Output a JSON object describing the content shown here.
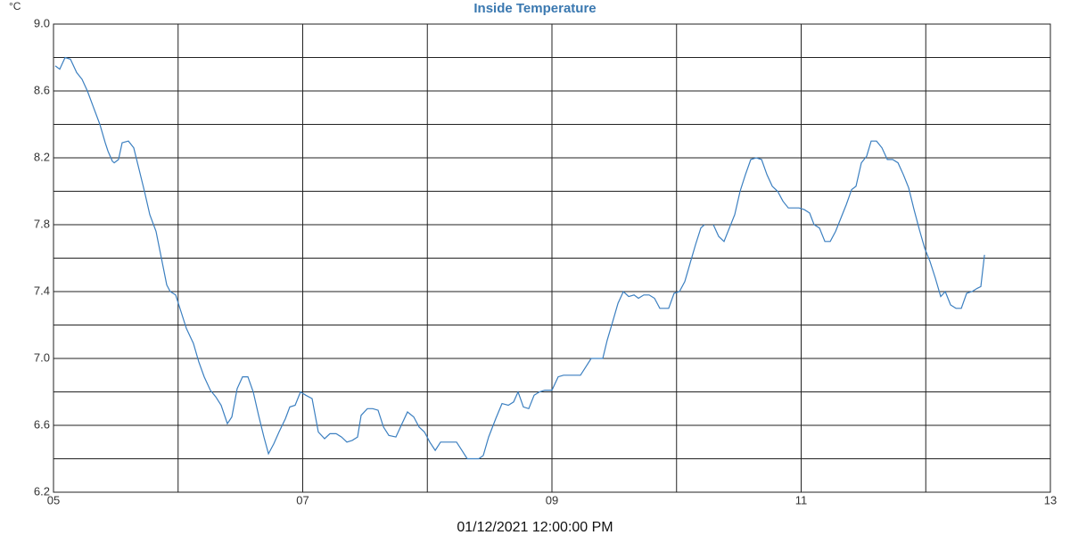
{
  "chart_data": {
    "type": "line",
    "title": "Inside Temperature",
    "y_unit": "°C",
    "xlabel": "01/12/2021 12:00:00 PM",
    "xlim": [
      5,
      13
    ],
    "ylim": [
      6.2,
      9.0
    ],
    "xticks": [
      {
        "value": 5,
        "label": "05"
      },
      {
        "value": 7,
        "label": "07"
      },
      {
        "value": 9,
        "label": "09"
      },
      {
        "value": 11,
        "label": "11"
      },
      {
        "value": 13,
        "label": "13"
      }
    ],
    "x_minor_ticks": [
      6,
      8,
      10,
      12
    ],
    "yticks": [
      {
        "value": 6.2,
        "label": "6.2"
      },
      6.6,
      {
        "value": 7.0,
        "label": "7.0"
      },
      7.4,
      7.8,
      8.2,
      8.6,
      {
        "value": 9.0,
        "label": "9.0"
      }
    ],
    "y_minor_ticks": [
      6.4,
      6.8,
      7.2,
      7.6,
      8.0,
      8.4,
      8.8
    ],
    "grid": true,
    "series": [
      {
        "name": "Inside Temperature",
        "color": "#3b7fc0",
        "x": [
          5.014,
          5.05,
          5.093,
          5.136,
          5.186,
          5.229,
          5.272,
          5.322,
          5.372,
          5.415,
          5.437,
          5.472,
          5.487,
          5.522,
          5.551,
          5.601,
          5.644,
          5.687,
          5.73,
          5.773,
          5.823,
          5.866,
          5.909,
          5.937,
          5.98,
          6.023,
          6.066,
          6.123,
          6.166,
          6.209,
          6.259,
          6.302,
          6.345,
          6.395,
          6.431,
          6.474,
          6.517,
          6.56,
          6.603,
          6.646,
          6.689,
          6.725,
          6.768,
          6.81,
          6.861,
          6.896,
          6.939,
          6.982,
          7.025,
          7.075,
          7.125,
          7.175,
          7.218,
          7.268,
          7.311,
          7.354,
          7.397,
          7.44,
          7.469,
          7.519,
          7.562,
          7.605,
          7.648,
          7.691,
          7.748,
          7.791,
          7.841,
          7.891,
          7.934,
          7.977,
          8.02,
          8.063,
          8.106,
          8.149,
          8.192,
          8.234,
          8.277,
          8.32,
          8.37,
          8.413,
          8.449,
          8.492,
          8.549,
          8.599,
          8.65,
          8.692,
          8.728,
          8.771,
          8.814,
          8.857,
          8.9,
          8.943,
          9.0,
          9.05,
          9.093,
          9.143,
          9.186,
          9.229,
          9.272,
          9.315,
          9.365,
          9.408,
          9.444,
          9.487,
          9.53,
          9.573,
          9.616,
          9.659,
          9.694,
          9.737,
          9.78,
          9.823,
          9.866,
          9.909,
          9.937,
          9.98,
          10.023,
          10.066,
          10.109,
          10.152,
          10.195,
          10.224,
          10.26,
          10.295,
          10.338,
          10.381,
          10.424,
          10.467,
          10.51,
          10.553,
          10.596,
          10.639,
          10.682,
          10.725,
          10.768,
          10.811,
          10.854,
          10.897,
          10.94,
          10.983,
          11.025,
          11.068,
          11.104,
          11.147,
          11.19,
          11.233,
          11.276,
          11.319,
          11.362,
          11.405,
          11.44,
          11.483,
          11.526,
          11.562,
          11.605,
          11.648,
          11.691,
          11.734,
          11.777,
          11.82,
          11.863,
          11.906,
          11.949,
          11.991,
          12.034,
          12.077,
          12.12,
          12.156,
          12.199,
          12.242,
          12.285,
          12.328,
          12.371,
          12.414,
          12.442,
          12.471
        ],
        "values": [
          8.75,
          8.73,
          8.8,
          8.79,
          8.71,
          8.67,
          8.6,
          8.5,
          8.4,
          8.29,
          8.24,
          8.18,
          8.17,
          8.19,
          8.29,
          8.3,
          8.26,
          8.13,
          8.0,
          7.86,
          7.76,
          7.6,
          7.44,
          7.4,
          7.38,
          7.28,
          7.18,
          7.09,
          6.98,
          6.89,
          6.81,
          6.77,
          6.72,
          6.61,
          6.65,
          6.82,
          6.89,
          6.89,
          6.8,
          6.66,
          6.53,
          6.43,
          6.49,
          6.56,
          6.64,
          6.71,
          6.72,
          6.8,
          6.78,
          6.76,
          6.56,
          6.52,
          6.55,
          6.55,
          6.53,
          6.5,
          6.51,
          6.53,
          6.66,
          6.7,
          6.7,
          6.69,
          6.59,
          6.54,
          6.53,
          6.6,
          6.68,
          6.65,
          6.59,
          6.56,
          6.5,
          6.45,
          6.5,
          6.5,
          6.5,
          6.5,
          6.45,
          6.4,
          6.4,
          6.4,
          6.42,
          6.53,
          6.64,
          6.73,
          6.72,
          6.74,
          6.8,
          6.71,
          6.7,
          6.78,
          6.8,
          6.81,
          6.81,
          6.89,
          6.9,
          6.9,
          6.9,
          6.9,
          6.95,
          7.0,
          7.0,
          7.0,
          7.11,
          7.22,
          7.33,
          7.4,
          7.37,
          7.38,
          7.36,
          7.38,
          7.38,
          7.36,
          7.3,
          7.3,
          7.3,
          7.39,
          7.4,
          7.46,
          7.57,
          7.68,
          7.78,
          7.8,
          null,
          7.8,
          7.73,
          7.7,
          7.78,
          7.86,
          8.0,
          8.1,
          8.19,
          8.2,
          8.19,
          8.1,
          8.03,
          8.0,
          7.94,
          7.9,
          7.9,
          7.9,
          7.89,
          7.87,
          7.8,
          7.78,
          7.7,
          7.7,
          7.76,
          7.84,
          7.92,
          8.01,
          8.03,
          8.17,
          8.21,
          8.3,
          8.3,
          8.26,
          8.19,
          8.19,
          8.17,
          8.1,
          8.02,
          7.89,
          7.77,
          7.66,
          7.58,
          7.48,
          7.37,
          7.4,
          7.32,
          7.3,
          7.3,
          7.39,
          7.4,
          7.42,
          7.43,
          7.62
        ]
      }
    ]
  }
}
